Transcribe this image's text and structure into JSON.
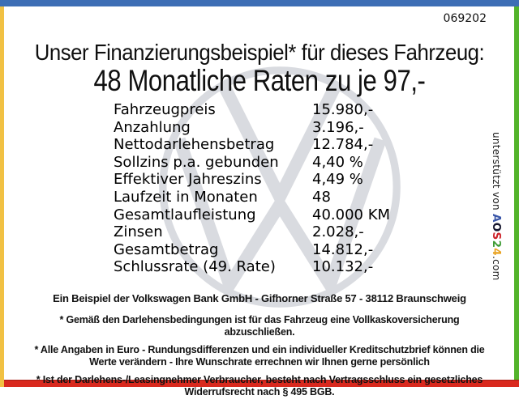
{
  "serial": "069202",
  "header": {
    "line1": "Unser Finanzierungsbeispiel* für dieses Fahrzeug:",
    "line2": "48 Monatliche Raten zu je 97,-"
  },
  "table": {
    "rows": [
      {
        "label": "Fahrzeugpreis",
        "value": "15.980,-"
      },
      {
        "label": "Anzahlung",
        "value": "3.196,-"
      },
      {
        "label": "Nettodarlehensbetrag",
        "value": "12.784,-"
      },
      {
        "label": "Sollzins p.a. gebunden",
        "value": "4,40 %"
      },
      {
        "label": "Effektiver Jahreszins",
        "value": "4,49 %"
      },
      {
        "label": "Laufzeit in Monaten",
        "value": "48"
      },
      {
        "label": "Gesamtlaufleistung",
        "value": "40.000 KM"
      },
      {
        "label": "Zinsen",
        "value": "2.028,-"
      },
      {
        "label": "Gesamtbetrag",
        "value": "14.812,-"
      },
      {
        "label": "Schlussrate (49. Rate)",
        "value": "10.132,-"
      }
    ]
  },
  "bank_line": "Ein Beispiel der Volkswagen Bank GmbH - Gifhorner Straße 57 - 38112 Braunschweig",
  "footnotes": [
    "* Gemäß den Darlehensbedingungen ist für das Fahrzeug eine Vollkaskoversicherung abzuschließen.",
    "* Alle Angaben in Euro - Rundungsdifferenzen und ein individueller Kreditschutzbrief können die Werte verändern - Ihre Wunschrate errechnen wir Ihnen gerne persönlich",
    "* Ist der Darlehens-/Leasingnehmer Verbraucher, besteht nach Vertragsschluss ein gesetzliches Widerrufsrecht nach § 495 BGB."
  ],
  "supported_by": {
    "prefix": "unterstützt von ",
    "brand": [
      {
        "ch": "A",
        "color": "#3a56a8"
      },
      {
        "ch": "O",
        "color": "#15152d"
      },
      {
        "ch": "S",
        "color": "#cc2229"
      },
      {
        "ch": "2",
        "color": "#3f9c35"
      },
      {
        "ch": "4",
        "color": "#e9a424"
      }
    ],
    "suffix": ".com"
  },
  "watermark": {
    "icon": "vw-logo",
    "color": "#d9dbe0"
  },
  "colors": {
    "border_top": "#3d6eb5",
    "border_left": "#f1c143",
    "border_right": "#53b32b",
    "border_bottom": "#d9291e"
  }
}
